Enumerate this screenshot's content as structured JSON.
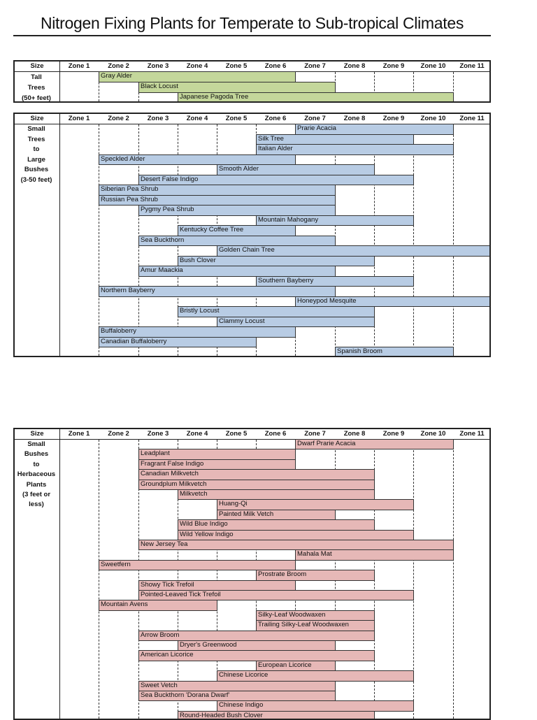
{
  "title": "Nitrogen Fixing Plants for Temperate to Sub-tropical Climates",
  "header": {
    "size": "Size",
    "zones": [
      "Zone 1",
      "Zone 2",
      "Zone 3",
      "Zone 4",
      "Zone 5",
      "Zone 6",
      "Zone 7",
      "Zone 8",
      "Zone 9",
      "Zone 10",
      "Zone 11"
    ]
  },
  "tables": [
    {
      "size_label": [
        "Tall",
        "Trees",
        "(50+ feet)"
      ],
      "color": "#c4d79b",
      "plants": [
        {
          "name": "Gray Alder",
          "start_zone": 2,
          "end_zone": 6
        },
        {
          "name": "Black Locust",
          "start_zone": 3,
          "end_zone": 7
        },
        {
          "name": "Japanese Pagoda Tree",
          "start_zone": 4,
          "end_zone": 10
        }
      ]
    },
    {
      "size_label": [
        "Small",
        "Trees",
        "to",
        "Large",
        "Bushes",
        "(3-50 feet)"
      ],
      "color": "#b8cce4",
      "plants": [
        {
          "name": "Prarie Acacia",
          "start_zone": 7,
          "end_zone": 10
        },
        {
          "name": "Silk Tree",
          "start_zone": 6,
          "end_zone": 9
        },
        {
          "name": "Italian Alder",
          "start_zone": 6,
          "end_zone": 10
        },
        {
          "name": "Speckled Alder",
          "start_zone": 2,
          "end_zone": 6
        },
        {
          "name": "Smooth Alder",
          "start_zone": 5,
          "end_zone": 8
        },
        {
          "name": "Desert False Indigo",
          "start_zone": 3,
          "end_zone": 9
        },
        {
          "name": "Siberian Pea Shrub",
          "start_zone": 2,
          "end_zone": 7
        },
        {
          "name": "Russian Pea Shrub",
          "start_zone": 2,
          "end_zone": 7
        },
        {
          "name": "Pygmy Pea Shrub",
          "start_zone": 3,
          "end_zone": 7
        },
        {
          "name": "Mountain Mahogany",
          "start_zone": 6,
          "end_zone": 9
        },
        {
          "name": "Kentucky Coffee Tree",
          "start_zone": 4,
          "end_zone": 6
        },
        {
          "name": "Sea Buckthorn",
          "start_zone": 3,
          "end_zone": 7
        },
        {
          "name": "Golden Chain Tree",
          "start_zone": 5,
          "end_zone": 11
        },
        {
          "name": "Bush Clover",
          "start_zone": 4,
          "end_zone": 8
        },
        {
          "name": "Amur Maackia",
          "start_zone": 3,
          "end_zone": 7
        },
        {
          "name": "Southern Bayberry",
          "start_zone": 6,
          "end_zone": 9
        },
        {
          "name": "Northern Bayberry",
          "start_zone": 2,
          "end_zone": 7
        },
        {
          "name": "Honeypod Mesquite",
          "start_zone": 7,
          "end_zone": 11
        },
        {
          "name": "Bristly Locust",
          "start_zone": 4,
          "end_zone": 8
        },
        {
          "name": "Clammy Locust",
          "start_zone": 5,
          "end_zone": 8
        },
        {
          "name": "Buffaloberry",
          "start_zone": 2,
          "end_zone": 6
        },
        {
          "name": "Canadian Buffaloberry",
          "start_zone": 2,
          "end_zone": 5
        },
        {
          "name": "Spanish Broom",
          "start_zone": 8,
          "end_zone": 10
        }
      ]
    },
    {
      "size_label": [
        "Small",
        "Bushes",
        "to",
        "Herbaceous",
        "Plants",
        "(3 feet or",
        "less)"
      ],
      "color": "#e6b8b7",
      "plants": [
        {
          "name": "Dwarf Prarie Acacia",
          "start_zone": 7,
          "end_zone": 10
        },
        {
          "name": "Leadplant",
          "start_zone": 3,
          "end_zone": 6
        },
        {
          "name": "Fragrant False Indigo",
          "start_zone": 3,
          "end_zone": 6
        },
        {
          "name": "Canadian Milkvetch",
          "start_zone": 3,
          "end_zone": 8
        },
        {
          "name": "Groundplum Milkvetch",
          "start_zone": 3,
          "end_zone": 8
        },
        {
          "name": "Milkvetch",
          "start_zone": 4,
          "end_zone": 8
        },
        {
          "name": "Huang-Qi",
          "start_zone": 5,
          "end_zone": 9
        },
        {
          "name": "Painted Milk Vetch",
          "start_zone": 5,
          "end_zone": 7
        },
        {
          "name": "Wild Blue Indigo",
          "start_zone": 4,
          "end_zone": 8
        },
        {
          "name": "Wild Yellow Indigo",
          "start_zone": 4,
          "end_zone": 9
        },
        {
          "name": "New Jersey Tea",
          "start_zone": 3,
          "end_zone": 10
        },
        {
          "name": "Mahala Mat",
          "start_zone": 7,
          "end_zone": 10
        },
        {
          "name": "Sweetfern",
          "start_zone": 2,
          "end_zone": 6
        },
        {
          "name": "Prostrate Broom",
          "start_zone": 6,
          "end_zone": 8
        },
        {
          "name": "Showy Tick Trefoil",
          "start_zone": 3,
          "end_zone": 6
        },
        {
          "name": "Pointed-Leaved Tick Trefoil",
          "start_zone": 3,
          "end_zone": 9
        },
        {
          "name": "Mountain Avens",
          "start_zone": 2,
          "end_zone": 4
        },
        {
          "name": "Silky-Leaf Woodwaxen",
          "start_zone": 6,
          "end_zone": 8
        },
        {
          "name": "Trailing Silky-Leaf Woodwaxen",
          "start_zone": 6,
          "end_zone": 8
        },
        {
          "name": "Arrow Broom",
          "start_zone": 3,
          "end_zone": 8
        },
        {
          "name": "Dryer's Greenwood",
          "start_zone": 4,
          "end_zone": 7
        },
        {
          "name": "American Licorice",
          "start_zone": 3,
          "end_zone": 8
        },
        {
          "name": "European Licorice",
          "start_zone": 6,
          "end_zone": 7
        },
        {
          "name": "Chinese Licorice",
          "start_zone": 5,
          "end_zone": 9
        },
        {
          "name": "Sweet Vetch",
          "start_zone": 3,
          "end_zone": 7
        },
        {
          "name": "Sea Buckthorn 'Dorana Dwarf'",
          "start_zone": 3,
          "end_zone": 7
        },
        {
          "name": "Chinese Indigo",
          "start_zone": 5,
          "end_zone": 9
        },
        {
          "name": "Round-Headed Bush Clover",
          "start_zone": 4,
          "end_zone": 8
        }
      ]
    }
  ]
}
